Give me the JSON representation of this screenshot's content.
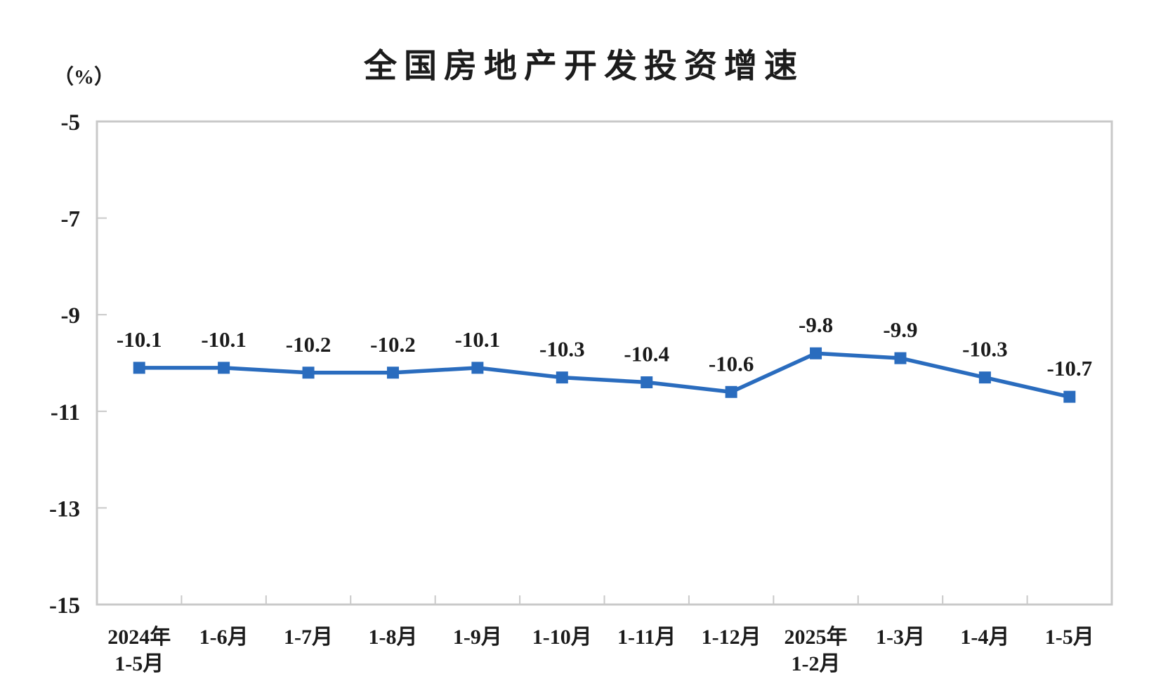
{
  "chart_data": {
    "type": "line",
    "title": "全国房地产开发投资增速",
    "unit_label": "（%）",
    "categories": [
      [
        "2024年",
        "1-5月"
      ],
      [
        "1-6月"
      ],
      [
        "1-7月"
      ],
      [
        "1-8月"
      ],
      [
        "1-9月"
      ],
      [
        "1-10月"
      ],
      [
        "1-11月"
      ],
      [
        "1-12月"
      ],
      [
        "2025年",
        "1-2月"
      ],
      [
        "1-3月"
      ],
      [
        "1-4月"
      ],
      [
        "1-5月"
      ]
    ],
    "series": [
      {
        "name": "全国房地产开发投资增速",
        "values": [
          -10.1,
          -10.1,
          -10.2,
          -10.2,
          -10.1,
          -10.3,
          -10.4,
          -10.6,
          -9.8,
          -9.9,
          -10.3,
          -10.7
        ]
      }
    ],
    "data_labels": [
      "-10.1",
      "-10.1",
      "-10.2",
      "-10.2",
      "-10.1",
      "-10.3",
      "-10.4",
      "-10.6",
      "-9.8",
      "-9.9",
      "-10.3",
      "-10.7"
    ],
    "ylim": [
      -15,
      -5
    ],
    "yticks": [
      -5,
      -7,
      -9,
      -11,
      -13,
      -15
    ],
    "ytick_interval": 2,
    "grid": false,
    "legend": "none",
    "marker": "square",
    "line_color": "#2A6CBE",
    "frame_color": "#c9c9c9",
    "text_color": "#1b1b1b",
    "background_color": "#ffffff"
  }
}
